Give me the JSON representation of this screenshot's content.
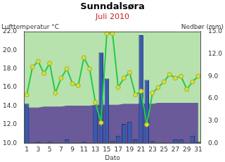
{
  "chart_data": {
    "type": "bar",
    "title": "Sunndalsøra",
    "subtitle": "Juli 2010",
    "x_label": "Dato",
    "y_label": "Lufttemperatur °C",
    "y2_label": "Nedbør (mm)",
    "categories": [
      1,
      null,
      3,
      null,
      5,
      null,
      7,
      null,
      9,
      null,
      11,
      null,
      13,
      null,
      15,
      null,
      17,
      null,
      19,
      null,
      21,
      null,
      23,
      null,
      25,
      null,
      27,
      null,
      29,
      null,
      31
    ],
    "series": [
      {
        "type": "line",
        "color": "#6a5a9a",
        "marker": "none",
        "values": [
          13.8,
          13.8,
          13.8,
          13.9,
          13.9,
          13.9,
          13.9,
          14.0,
          14.0,
          14.0,
          14.0,
          14.0,
          14.1,
          14.1,
          14.1,
          14.1,
          14.1,
          14.2,
          14.2,
          14.2,
          14.2,
          14.2,
          14.2,
          14.3,
          14.3,
          14.3,
          14.3,
          14.3,
          14.3,
          14.3,
          14.3
        ]
      },
      {
        "type": "bar",
        "color": "#3a5ab0",
        "axis": "y2",
        "values": [
          5.3,
          0,
          0.2,
          0,
          0.2,
          0,
          0,
          0.5,
          0,
          0,
          0.2,
          0,
          5.0,
          12.2,
          8.7,
          0.3,
          1.0,
          2.6,
          2.9,
          0.5,
          14.5,
          8.5,
          0.3,
          0,
          0.1,
          0,
          0.5,
          0.5,
          0,
          1.0,
          0.2
        ]
      },
      {
        "type": "line",
        "color": "#22cc44",
        "marker": "circle",
        "values": [
          15.2,
          18.2,
          18.8,
          17.5,
          18.6,
          15.4,
          17.0,
          18.0,
          16.4,
          16.2,
          19.2,
          18.0,
          14.4,
          12.2,
          21.8,
          21.8,
          16.0,
          17.0,
          17.6,
          15.2,
          15.6,
          12.0,
          15.4,
          16.0,
          16.6,
          17.4,
          17.0,
          17.2,
          15.8,
          16.6,
          17.2
        ]
      }
    ],
    "ylim": [
      10,
      22
    ],
    "yticks": [
      {
        "value": 10,
        "label": "10.0"
      },
      {
        "value": 12,
        "label": "12.0"
      },
      {
        "value": 14,
        "label": "14.0"
      },
      {
        "value": 16,
        "label": "16.0"
      },
      {
        "value": 18,
        "label": "18.0"
      },
      {
        "value": 20,
        "label": "20.0"
      },
      {
        "value": 22,
        "label": "22.0"
      }
    ],
    "y2lim": [
      0,
      15
    ],
    "y2ticks": [
      {
        "value": 0,
        "label": "0.0"
      },
      {
        "value": 3,
        "label": "3.0"
      },
      {
        "value": 6,
        "label": "6.0"
      },
      {
        "value": 9,
        "label": "9.0"
      },
      {
        "value": 12,
        "label": "12.0"
      },
      {
        "value": 15,
        "label": "15.0"
      }
    ],
    "grid": false,
    "legend": false
  }
}
